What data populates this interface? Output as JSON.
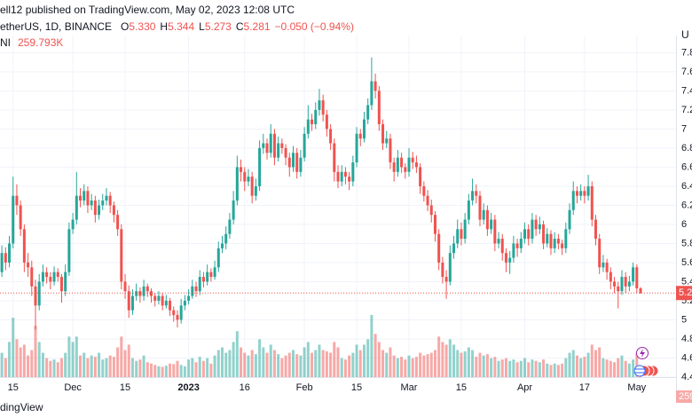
{
  "chart_data": {
    "type": "candlestick",
    "author_line": "ell12 published on TradingView.com, May 02, 2023 12:08 UTC",
    "symbol": "etherUS, 1D, BINANCE",
    "ohlc_names": [
      "O",
      "H",
      "L",
      "C"
    ],
    "ohlc_labels": [
      "5.330",
      "5.344",
      "5.273",
      "5.281"
    ],
    "change": "−0.050 (−0.94%)",
    "volume_name": "NI",
    "volume_value_label": "259.793K",
    "currency_label": "U",
    "footer": "dingView",
    "up_color": "#26a69a",
    "down_color": "#ef5350",
    "grid": true,
    "ylim": [
      4.4,
      7.98
    ],
    "yticks": [
      4.4,
      4.6,
      4.8,
      5.0,
      5.2,
      5.4,
      5.6,
      5.8,
      6.0,
      6.2,
      6.4,
      6.6,
      6.8,
      7.0,
      7.2,
      7.4,
      7.6,
      7.8
    ],
    "xticks": [
      {
        "value": 3,
        "label": "15"
      },
      {
        "value": 19,
        "label": "Dec"
      },
      {
        "value": 33,
        "label": "15"
      },
      {
        "value": 50,
        "label": "2023"
      },
      {
        "value": 65,
        "label": "16"
      },
      {
        "value": 81,
        "label": "Feb"
      },
      {
        "value": 95,
        "label": "15"
      },
      {
        "value": 109,
        "label": "Mar"
      },
      {
        "value": 123,
        "label": "15"
      },
      {
        "value": 140,
        "label": "Apr"
      },
      {
        "value": 156,
        "label": "17"
      },
      {
        "value": 170,
        "label": "May"
      }
    ],
    "ohlc": [
      [
        5.5,
        5.78,
        5.45,
        5.7
      ],
      [
        5.7,
        5.76,
        5.52,
        5.6
      ],
      [
        5.6,
        5.88,
        5.55,
        5.8
      ],
      [
        5.8,
        6.5,
        5.75,
        6.3
      ],
      [
        6.3,
        6.42,
        6.1,
        6.2
      ],
      [
        6.2,
        6.25,
        5.88,
        5.95
      ],
      [
        5.95,
        6.0,
        5.5,
        5.6
      ],
      [
        5.6,
        5.7,
        5.45,
        5.55
      ],
      [
        5.55,
        5.62,
        5.25,
        5.35
      ],
      [
        5.35,
        5.42,
        4.9,
        5.15
      ],
      [
        5.15,
        5.48,
        5.1,
        5.4
      ],
      [
        5.4,
        5.58,
        5.35,
        5.5
      ],
      [
        5.5,
        5.55,
        5.38,
        5.45
      ],
      [
        5.45,
        5.5,
        5.32,
        5.4
      ],
      [
        5.4,
        5.56,
        5.36,
        5.5
      ],
      [
        5.5,
        5.54,
        5.4,
        5.45
      ],
      [
        5.45,
        5.48,
        5.18,
        5.3
      ],
      [
        5.3,
        5.58,
        5.25,
        5.5
      ],
      [
        5.5,
        6.02,
        5.46,
        5.95
      ],
      [
        5.95,
        6.12,
        5.9,
        6.05
      ],
      [
        6.05,
        6.55,
        6.0,
        6.3
      ],
      [
        6.3,
        6.38,
        6.18,
        6.25
      ],
      [
        6.25,
        6.42,
        6.2,
        6.35
      ],
      [
        6.35,
        6.4,
        6.12,
        6.2
      ],
      [
        6.2,
        6.32,
        6.15,
        6.25
      ],
      [
        6.25,
        6.3,
        6.02,
        6.1
      ],
      [
        6.1,
        6.26,
        6.05,
        6.2
      ],
      [
        6.2,
        6.32,
        6.15,
        6.25
      ],
      [
        6.25,
        6.38,
        6.2,
        6.3
      ],
      [
        6.3,
        6.34,
        6.12,
        6.2
      ],
      [
        6.2,
        6.24,
        6.02,
        6.1
      ],
      [
        6.1,
        6.15,
        5.88,
        5.95
      ],
      [
        5.95,
        6.0,
        5.32,
        5.4
      ],
      [
        5.4,
        5.48,
        5.22,
        5.3
      ],
      [
        5.3,
        5.36,
        5.02,
        5.1
      ],
      [
        5.1,
        5.32,
        5.05,
        5.25
      ],
      [
        5.25,
        5.38,
        5.2,
        5.3
      ],
      [
        5.3,
        5.34,
        5.18,
        5.25
      ],
      [
        5.25,
        5.42,
        5.2,
        5.35
      ],
      [
        5.35,
        5.38,
        5.24,
        5.3
      ],
      [
        5.3,
        5.33,
        5.18,
        5.25
      ],
      [
        5.25,
        5.28,
        5.14,
        5.2
      ],
      [
        5.2,
        5.3,
        5.16,
        5.25
      ],
      [
        5.25,
        5.28,
        5.1,
        5.15
      ],
      [
        5.15,
        5.26,
        5.12,
        5.2
      ],
      [
        5.2,
        5.23,
        5.04,
        5.1
      ],
      [
        5.1,
        5.14,
        4.98,
        5.05
      ],
      [
        5.05,
        5.1,
        4.92,
        5.0
      ],
      [
        5.0,
        5.22,
        4.96,
        5.15
      ],
      [
        5.15,
        5.26,
        5.1,
        5.2
      ],
      [
        5.2,
        5.32,
        5.16,
        5.25
      ],
      [
        5.25,
        5.42,
        5.22,
        5.35
      ],
      [
        5.35,
        5.4,
        5.24,
        5.3
      ],
      [
        5.3,
        5.52,
        5.26,
        5.45
      ],
      [
        5.45,
        5.5,
        5.34,
        5.4
      ],
      [
        5.4,
        5.58,
        5.36,
        5.5
      ],
      [
        5.5,
        5.54,
        5.4,
        5.45
      ],
      [
        5.45,
        5.62,
        5.42,
        5.55
      ],
      [
        5.55,
        5.82,
        5.5,
        5.75
      ],
      [
        5.75,
        5.88,
        5.7,
        5.8
      ],
      [
        5.8,
        5.98,
        5.74,
        5.9
      ],
      [
        5.9,
        6.12,
        5.85,
        6.05
      ],
      [
        6.05,
        6.35,
        6.0,
        6.25
      ],
      [
        6.25,
        6.72,
        6.2,
        6.6
      ],
      [
        6.6,
        6.68,
        6.45,
        6.55
      ],
      [
        6.55,
        6.6,
        6.35,
        6.45
      ],
      [
        6.45,
        6.58,
        6.4,
        6.5
      ],
      [
        6.5,
        6.55,
        6.22,
        6.3
      ],
      [
        6.3,
        6.48,
        6.25,
        6.4
      ],
      [
        6.4,
        6.88,
        6.35,
        6.8
      ],
      [
        6.8,
        6.95,
        6.74,
        6.85
      ],
      [
        6.85,
        6.9,
        6.68,
        6.75
      ],
      [
        6.75,
        7.05,
        6.7,
        6.95
      ],
      [
        6.95,
        7.0,
        6.62,
        6.7
      ],
      [
        6.7,
        6.92,
        6.66,
        6.85
      ],
      [
        6.85,
        6.9,
        6.74,
        6.8
      ],
      [
        6.8,
        6.84,
        6.62,
        6.7
      ],
      [
        6.7,
        6.75,
        6.5,
        6.6
      ],
      [
        6.6,
        6.82,
        6.55,
        6.75
      ],
      [
        6.75,
        6.8,
        6.48,
        6.55
      ],
      [
        6.55,
        6.78,
        6.5,
        6.7
      ],
      [
        6.7,
        7.02,
        6.66,
        6.95
      ],
      [
        6.95,
        7.25,
        6.9,
        7.1
      ],
      [
        7.1,
        7.16,
        6.98,
        7.05
      ],
      [
        7.05,
        7.28,
        7.0,
        7.2
      ],
      [
        7.2,
        7.42,
        7.14,
        7.3
      ],
      [
        7.3,
        7.36,
        7.08,
        7.15
      ],
      [
        7.15,
        7.2,
        6.92,
        7.0
      ],
      [
        7.0,
        7.05,
        6.78,
        6.85
      ],
      [
        6.85,
        6.9,
        6.45,
        6.55
      ],
      [
        6.55,
        6.62,
        6.38,
        6.45
      ],
      [
        6.45,
        6.62,
        6.4,
        6.55
      ],
      [
        6.55,
        6.6,
        6.42,
        6.5
      ],
      [
        6.5,
        6.55,
        6.36,
        6.45
      ],
      [
        6.45,
        6.72,
        6.4,
        6.65
      ],
      [
        6.65,
        7.02,
        6.6,
        6.95
      ],
      [
        6.95,
        7.0,
        6.82,
        6.9
      ],
      [
        6.9,
        7.18,
        6.86,
        7.1
      ],
      [
        7.1,
        7.32,
        7.05,
        7.25
      ],
      [
        7.25,
        7.75,
        7.2,
        7.5
      ],
      [
        7.5,
        7.58,
        7.32,
        7.4
      ],
      [
        7.4,
        7.45,
        6.98,
        7.05
      ],
      [
        7.05,
        7.1,
        6.78,
        6.85
      ],
      [
        6.85,
        6.98,
        6.8,
        6.9
      ],
      [
        6.9,
        6.95,
        6.58,
        6.65
      ],
      [
        6.65,
        6.7,
        6.45,
        6.55
      ],
      [
        6.55,
        6.78,
        6.5,
        6.7
      ],
      [
        6.7,
        6.75,
        6.54,
        6.6
      ],
      [
        6.6,
        6.64,
        6.48,
        6.55
      ],
      [
        6.55,
        6.8,
        6.5,
        6.7
      ],
      [
        6.7,
        6.76,
        6.58,
        6.65
      ],
      [
        6.65,
        6.72,
        6.54,
        6.6
      ],
      [
        6.6,
        6.64,
        6.32,
        6.4
      ],
      [
        6.4,
        6.45,
        6.24,
        6.3
      ],
      [
        6.3,
        6.36,
        6.14,
        6.2
      ],
      [
        6.2,
        6.26,
        6.02,
        6.1
      ],
      [
        6.1,
        6.14,
        5.82,
        5.9
      ],
      [
        5.9,
        5.95,
        5.52,
        5.6
      ],
      [
        5.6,
        5.66,
        5.38,
        5.45
      ],
      [
        5.45,
        5.52,
        5.22,
        5.4
      ],
      [
        5.4,
        5.78,
        5.36,
        5.7
      ],
      [
        5.7,
        5.88,
        5.64,
        5.8
      ],
      [
        5.8,
        6.05,
        5.75,
        5.95
      ],
      [
        5.95,
        6.02,
        5.78,
        5.85
      ],
      [
        5.85,
        6.12,
        5.8,
        6.05
      ],
      [
        6.05,
        6.32,
        6.0,
        6.25
      ],
      [
        6.25,
        6.48,
        6.2,
        6.35
      ],
      [
        6.35,
        6.42,
        6.22,
        6.3
      ],
      [
        6.3,
        6.35,
        5.98,
        6.05
      ],
      [
        6.05,
        6.22,
        6.0,
        6.15
      ],
      [
        6.15,
        6.2,
        5.88,
        5.95
      ],
      [
        5.95,
        6.12,
        5.9,
        6.05
      ],
      [
        6.05,
        6.1,
        5.72,
        5.8
      ],
      [
        5.8,
        5.92,
        5.75,
        5.85
      ],
      [
        5.85,
        5.9,
        5.62,
        5.7
      ],
      [
        5.7,
        5.75,
        5.5,
        5.6
      ],
      [
        5.6,
        5.72,
        5.48,
        5.65
      ],
      [
        5.65,
        5.88,
        5.6,
        5.8
      ],
      [
        5.8,
        5.85,
        5.66,
        5.75
      ],
      [
        5.75,
        5.92,
        5.7,
        5.85
      ],
      [
        5.85,
        6.02,
        5.8,
        5.95
      ],
      [
        5.95,
        6.0,
        5.78,
        5.85
      ],
      [
        5.85,
        6.12,
        5.8,
        6.05
      ],
      [
        6.05,
        6.1,
        5.88,
        5.95
      ],
      [
        5.95,
        6.08,
        5.9,
        6.0
      ],
      [
        6.0,
        6.04,
        5.74,
        5.8
      ],
      [
        5.8,
        5.96,
        5.76,
        5.9
      ],
      [
        5.9,
        5.94,
        5.68,
        5.75
      ],
      [
        5.75,
        5.92,
        5.7,
        5.85
      ],
      [
        5.85,
        5.9,
        5.74,
        5.8
      ],
      [
        5.8,
        5.84,
        5.68,
        5.75
      ],
      [
        5.75,
        6.02,
        5.7,
        5.95
      ],
      [
        5.95,
        6.22,
        5.9,
        6.15
      ],
      [
        6.15,
        6.45,
        6.1,
        6.35
      ],
      [
        6.35,
        6.4,
        6.22,
        6.3
      ],
      [
        6.3,
        6.42,
        6.25,
        6.35
      ],
      [
        6.35,
        6.4,
        6.22,
        6.3
      ],
      [
        6.3,
        6.52,
        6.25,
        6.4
      ],
      [
        6.4,
        6.45,
        5.98,
        6.05
      ],
      [
        6.05,
        6.1,
        5.78,
        5.85
      ],
      [
        5.85,
        5.9,
        5.48,
        5.55
      ],
      [
        5.55,
        5.68,
        5.5,
        5.6
      ],
      [
        5.6,
        5.64,
        5.42,
        5.5
      ],
      [
        5.5,
        5.55,
        5.32,
        5.4
      ],
      [
        5.4,
        5.45,
        5.28,
        5.35
      ],
      [
        5.35,
        5.4,
        5.12,
        5.3
      ],
      [
        5.3,
        5.52,
        5.26,
        5.45
      ],
      [
        5.45,
        5.5,
        5.28,
        5.35
      ],
      [
        5.35,
        5.46,
        5.3,
        5.4
      ],
      [
        5.4,
        5.6,
        5.36,
        5.55
      ],
      [
        5.55,
        5.58,
        5.28,
        5.33
      ],
      [
        5.33,
        5.344,
        5.273,
        5.281
      ]
    ],
    "volume": [
      900,
      700,
      1300,
      2200,
      1400,
      1100,
      1200,
      800,
      1000,
      1900,
      1300,
      900,
      700,
      600,
      650,
      550,
      700,
      900,
      1500,
      1300,
      1500,
      800,
      900,
      700,
      800,
      750,
      900,
      650,
      700,
      800,
      750,
      1100,
      1500,
      1000,
      1200,
      700,
      600,
      650,
      800,
      550,
      500,
      450,
      400,
      380,
      420,
      500,
      480,
      600,
      450,
      400,
      650,
      700,
      550,
      750,
      600,
      700,
      500,
      800,
      1000,
      1100,
      900,
      1000,
      1300,
      1700,
      1100,
      900,
      800,
      1000,
      850,
      1400,
      1100,
      900,
      1200,
      1000,
      850,
      700,
      800,
      900,
      1000,
      850,
      800,
      1100,
      1300,
      900,
      1000,
      1200,
      1000,
      950,
      900,
      1300,
      1100,
      700,
      650,
      800,
      900,
      1200,
      1000,
      1200,
      1400,
      2300,
      1600,
      1300,
      1000,
      900,
      1100,
      800,
      700,
      750,
      650,
      800,
      700,
      750,
      900,
      800,
      850,
      900,
      1000,
      1500,
      1300,
      1200,
      1400,
      1200,
      1000,
      900,
      950,
      1100,
      1000,
      750,
      900,
      800,
      850,
      700,
      750,
      600,
      650,
      700,
      600,
      650,
      550,
      600,
      700,
      550,
      650,
      600,
      550,
      650,
      500,
      450,
      500,
      450,
      500,
      700,
      900,
      1000,
      800,
      700,
      750,
      900,
      1200,
      1000,
      1100,
      700,
      650,
      600,
      550,
      700,
      800,
      600,
      500,
      650,
      900,
      259.793
    ]
  }
}
